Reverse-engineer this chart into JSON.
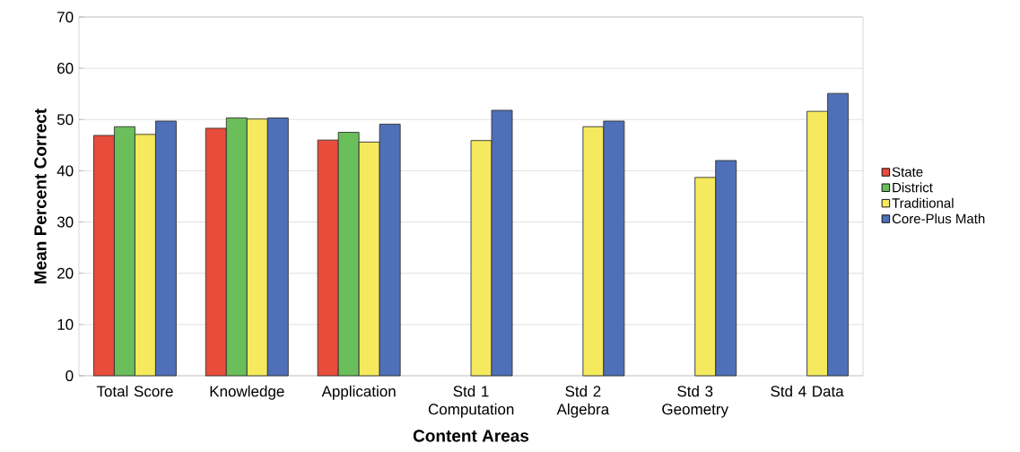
{
  "chart_data": {
    "type": "bar",
    "xlabel": "Content Areas",
    "ylabel": "Mean Percent Correct",
    "categories": [
      "Total Score",
      "Knowledge",
      "Application",
      "Std 1 Computation",
      "Std 2 Algebra",
      "Std 3 Geometry",
      "Std 4 Data"
    ],
    "series": [
      {
        "name": "State",
        "color": "#e84c3a",
        "values": [
          46.9,
          48.3,
          46.0,
          null,
          null,
          null,
          null
        ]
      },
      {
        "name": "District",
        "color": "#6abf5a",
        "values": [
          48.6,
          50.3,
          47.5,
          null,
          null,
          null,
          null
        ]
      },
      {
        "name": "Traditional",
        "color": "#f5e95e",
        "values": [
          47.1,
          50.1,
          45.6,
          45.9,
          48.6,
          38.7,
          51.6
        ]
      },
      {
        "name": "Core-Plus Math",
        "color": "#4f6fb8",
        "values": [
          49.7,
          50.3,
          49.1,
          51.8,
          49.7,
          42.0,
          55.1
        ]
      }
    ],
    "ylim": [
      0,
      70
    ],
    "yticks": [
      0,
      10,
      20,
      30,
      40,
      50,
      60,
      70
    ],
    "grid": "y",
    "legend": "right"
  }
}
